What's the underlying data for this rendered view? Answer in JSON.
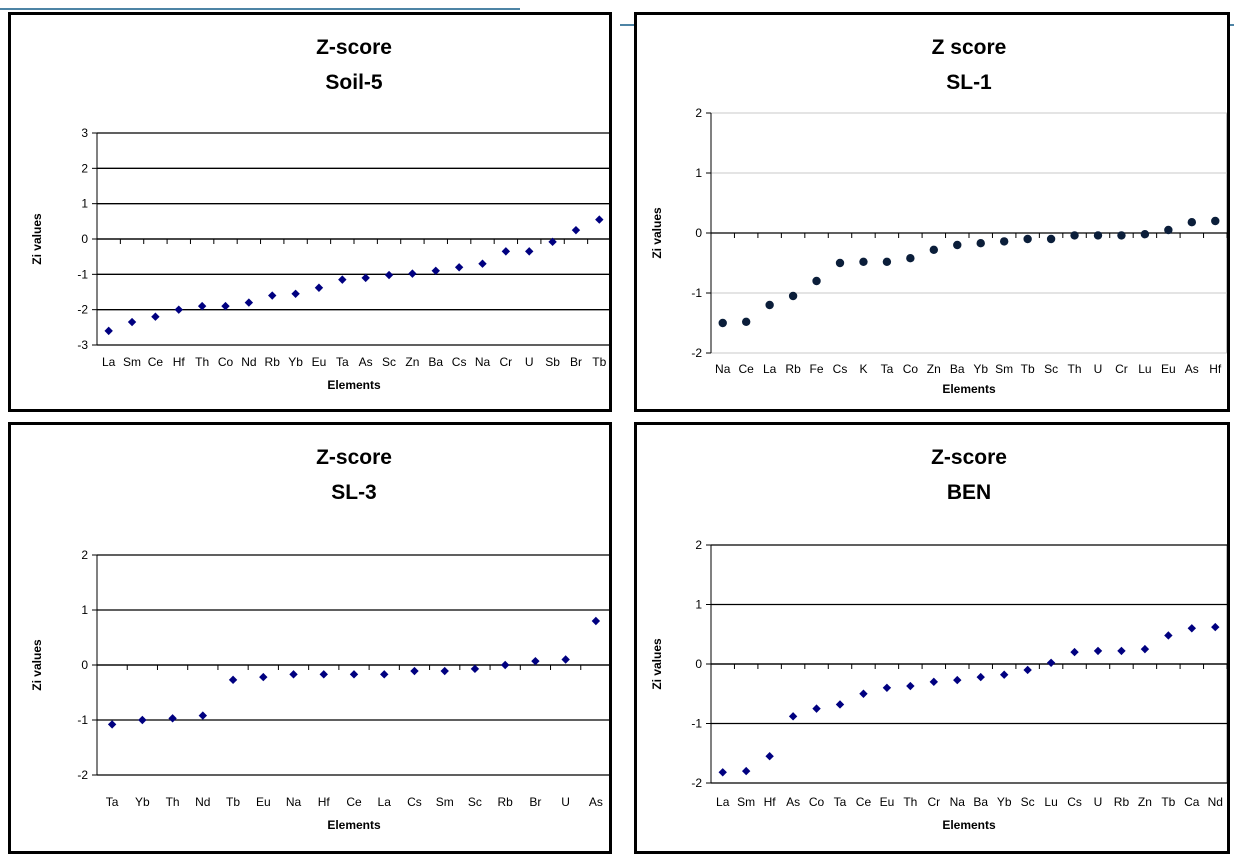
{
  "chart_data": [
    {
      "type": "scatter",
      "title": "Z-score",
      "subtitle": "Soil-5",
      "xlabel": "Elements",
      "ylabel": "Zi values",
      "categories": [
        "La",
        "Sm",
        "Ce",
        "Hf",
        "Th",
        "Co",
        "Nd",
        "Rb",
        "Yb",
        "Eu",
        "Ta",
        "As",
        "Sc",
        "Zn",
        "Ba",
        "Cs",
        "Na",
        "Cr",
        "U",
        "Sb",
        "Br",
        "Tb"
      ],
      "values": [
        -2.6,
        -2.35,
        -2.2,
        -2.0,
        -1.9,
        -1.9,
        -1.8,
        -1.6,
        -1.55,
        -1.38,
        -1.15,
        -1.1,
        -1.02,
        -0.98,
        -0.9,
        -0.8,
        -0.7,
        -0.35,
        -0.35,
        -0.08,
        0.25,
        0.55
      ],
      "ylim": [
        -3,
        3
      ],
      "yticks": [
        -3,
        -2,
        -1,
        0,
        1,
        2,
        3
      ],
      "grid": "horizontal",
      "marker": "diamond",
      "point_color": "#000080",
      "label_mode": "all"
    },
    {
      "type": "scatter",
      "title": "Z score",
      "subtitle": "SL-1",
      "xlabel": "Elements",
      "ylabel": "Zi values",
      "categories": [
        "Na",
        "Ce",
        "La",
        "Rb",
        "Fe",
        "Cs",
        "K",
        "Ta",
        "Co",
        "Zn",
        "Ba",
        "Yb",
        "Sm",
        "Tb",
        "Sc",
        "Th",
        "U",
        "Cr",
        "Lu",
        "Eu",
        "As",
        "Hf"
      ],
      "values": [
        -1.5,
        -1.48,
        -1.2,
        -1.05,
        -0.8,
        -0.5,
        -0.48,
        -0.48,
        -0.42,
        -0.28,
        -0.2,
        -0.17,
        -0.14,
        -0.1,
        -0.1,
        -0.04,
        -0.04,
        -0.04,
        -0.02,
        0.05,
        0.18,
        0.2
      ],
      "ylim": [
        -2,
        2
      ],
      "yticks": [
        -2,
        -1,
        0,
        1,
        2
      ],
      "grid": "horizontal",
      "marker": "circle",
      "point_color": "#0b1e3a",
      "label_mode": "all"
    },
    {
      "type": "scatter",
      "title": "Z-score",
      "subtitle": "SL-3",
      "xlabel": "Elements",
      "ylabel": "Zi values",
      "categories": [
        "Ta",
        "Yb",
        "Th",
        "Nd",
        "Tb",
        "Eu",
        "Na",
        "Hf",
        "Ce",
        "La",
        "Cs",
        "Sm",
        "Sc",
        "Rb",
        "Br",
        "U",
        "As"
      ],
      "values": [
        -1.08,
        -1.0,
        -0.97,
        -0.92,
        -0.27,
        -0.22,
        -0.17,
        -0.17,
        -0.17,
        -0.17,
        -0.11,
        -0.11,
        -0.07,
        0.0,
        0.07,
        0.1,
        0.8
      ],
      "ylim": [
        -2,
        2
      ],
      "yticks": [
        -2,
        -1,
        0,
        1,
        2
      ],
      "grid": "horizontal",
      "marker": "diamond",
      "point_color": "#000080",
      "label_mode": "all"
    },
    {
      "type": "scatter",
      "title": "Z-score",
      "subtitle": "BEN",
      "xlabel": "Elements",
      "ylabel": "Zi values",
      "categories": [
        "La",
        "Sm",
        "Hf",
        "As",
        "Co",
        "Ta",
        "Ce",
        "Eu",
        "Th",
        "Cr",
        "Na",
        "Ba",
        "Yb",
        "Sc",
        "Lu",
        "Cs",
        "U",
        "Rb",
        "Zn",
        "Tb",
        "Ca",
        "Nd"
      ],
      "values": [
        -1.82,
        -1.8,
        -1.55,
        -0.88,
        -0.75,
        -0.68,
        -0.5,
        -0.4,
        -0.37,
        -0.3,
        -0.27,
        -0.22,
        -0.18,
        -0.1,
        0.02,
        0.2,
        0.22,
        0.22,
        0.25,
        0.48,
        0.6,
        0.62
      ],
      "ylim": [
        -2,
        2
      ],
      "yticks": [
        -2,
        -1,
        0,
        1,
        2
      ],
      "grid": "horizontal",
      "marker": "diamond",
      "point_color": "#000080",
      "label_mode": "all"
    }
  ]
}
